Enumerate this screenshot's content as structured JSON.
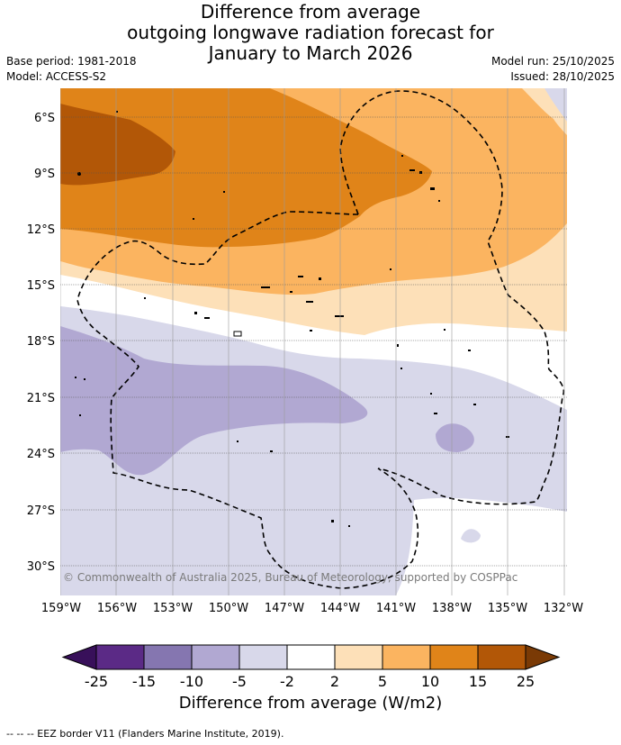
{
  "header": {
    "title_lines": [
      "Difference from average",
      "outgoing longwave radiation forecast for",
      "January to March 2026"
    ],
    "base_period": "Base period: 1981-2018",
    "model": "Model: ACCESS-S2",
    "model_run": "Model run: 25/10/2025",
    "issued": "Issued: 28/10/2025"
  },
  "map": {
    "lat_labels": [
      "6°S",
      "9°S",
      "12°S",
      "15°S",
      "18°S",
      "21°S",
      "24°S",
      "27°S",
      "30°S"
    ],
    "lat_values": [
      -6,
      -9,
      -12,
      -15,
      -18,
      -21,
      -24,
      -27,
      -30
    ],
    "lon_labels": [
      "159°W",
      "156°W",
      "153°W",
      "150°W",
      "147°W",
      "144°W",
      "141°W",
      "138°W",
      "135°W",
      "132°W"
    ],
    "lon_values": [
      -159,
      -156,
      -153,
      -150,
      -147,
      -144,
      -141,
      -138,
      -135,
      -132
    ],
    "copyright": "© Commonwealth of Australia 2025, Bureau of Meteorology, supported by COSPPac"
  },
  "colorbar": {
    "labels": [
      "-25",
      "-15",
      "-10",
      "-5",
      "-2",
      "2",
      "5",
      "10",
      "15",
      "25"
    ],
    "colors": [
      "#5b2a86",
      "#8576b0",
      "#b1a8d2",
      "#d8d8ea",
      "#ffffff",
      "#fde0b8",
      "#fbb460",
      "#e08419",
      "#b25707"
    ],
    "low_extend_color": "#38105a",
    "high_extend_color": "#7a3a05",
    "title": "Difference from average (W/m2)"
  },
  "footnote": "--  --  -- EEZ border V11 (Flanders Marine Institute, 2019)."
}
